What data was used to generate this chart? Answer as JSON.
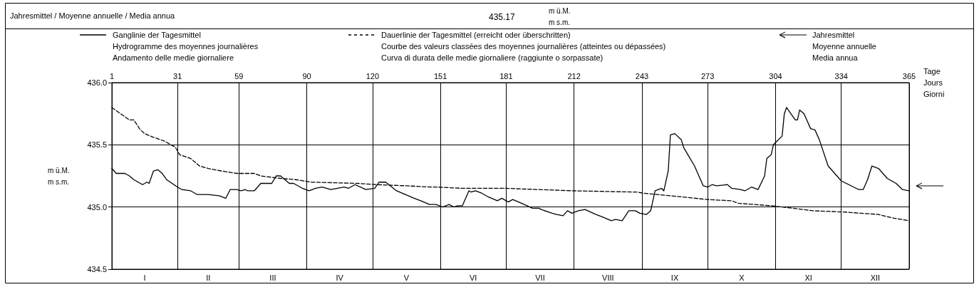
{
  "chart_data": {
    "type": "line",
    "annotations": [
      "Jahresmittel / Moyenne annuelle / Media annua",
      "435.17",
      "m ü.M.\nm s.m.",
      "Jahresmittel\nMoyenne annuelle\nMedia annua",
      "I",
      "II",
      "III",
      "IV",
      "V",
      "VI",
      "VII",
      "VIII",
      "IX",
      "X",
      "XI",
      "XII"
    ],
    "xlim": [
      1,
      365
    ],
    "xticks": [
      1,
      31,
      59,
      90,
      120,
      151,
      181,
      212,
      243,
      273,
      304,
      334,
      365
    ],
    "xlabel": "Tage\nJours\nGiorni",
    "ylim": [
      434.5,
      436
    ],
    "yticks": [
      {
        "value": 434.5,
        "label": "434.5"
      },
      {
        "value": 435,
        "label": "435.0"
      },
      {
        "value": 435.5,
        "label": "435.5"
      },
      {
        "value": 436,
        "label": "436.0"
      }
    ],
    "ylabel": "m ü.M.\nm s.m.",
    "grid": true,
    "legend": "top",
    "marker": "none",
    "series": [
      {
        "name": "Ganglinie der Tagesmittel\nHydrogramme des moyennes journalières\nAndamento delle medie giornaliere",
        "color": "#000000",
        "line_style": "solid",
        "x": [
          1,
          3,
          6,
          7,
          9,
          11,
          15,
          17,
          18,
          20,
          22,
          24,
          26,
          31,
          33,
          37,
          40,
          45,
          50,
          53,
          55,
          58,
          60,
          62,
          63,
          66,
          69,
          74,
          76,
          78,
          82,
          84,
          88,
          91,
          94,
          97,
          101,
          104,
          107,
          109,
          112,
          117,
          121,
          123,
          126,
          131,
          135,
          139,
          142,
          146,
          149,
          152,
          155,
          157,
          159,
          161,
          164,
          165,
          167,
          170,
          173,
          177,
          179,
          182,
          184,
          188,
          193,
          196,
          197,
          202,
          204,
          207,
          209,
          211,
          214,
          217,
          222,
          225,
          229,
          231,
          234,
          237,
          240,
          242,
          245,
          247,
          249,
          252,
          253,
          255,
          256,
          258,
          261,
          262,
          264,
          267,
          271,
          273,
          275,
          277,
          282,
          284,
          288,
          290,
          293,
          296,
          299,
          300,
          302,
          303,
          307,
          308,
          309,
          313,
          314,
          315,
          317,
          320,
          322,
          324,
          328,
          332,
          334,
          342,
          344,
          346,
          348,
          351,
          355,
          359,
          362,
          365
        ],
        "values": [
          435.31,
          435.27,
          435.27,
          435.27,
          435.25,
          435.22,
          435.18,
          435.2,
          435.19,
          435.29,
          435.3,
          435.27,
          435.22,
          435.16,
          435.14,
          435.13,
          435.1,
          435.1,
          435.09,
          435.07,
          435.14,
          435.14,
          435.13,
          435.14,
          435.13,
          435.13,
          435.19,
          435.19,
          435.25,
          435.25,
          435.19,
          435.19,
          435.15,
          435.13,
          435.15,
          435.16,
          435.14,
          435.15,
          435.16,
          435.15,
          435.18,
          435.14,
          435.15,
          435.2,
          435.2,
          435.13,
          435.1,
          435.07,
          435.05,
          435.02,
          435.02,
          435.0,
          435.02,
          435.0,
          435.01,
          435.01,
          435.13,
          435.12,
          435.13,
          435.11,
          435.08,
          435.05,
          435.07,
          435.04,
          435.06,
          435.03,
          434.99,
          434.99,
          434.98,
          434.95,
          434.94,
          434.93,
          434.97,
          434.95,
          434.97,
          434.98,
          434.94,
          434.92,
          434.89,
          434.9,
          434.89,
          434.97,
          434.97,
          434.95,
          434.94,
          434.97,
          435.13,
          435.15,
          435.13,
          435.29,
          435.58,
          435.59,
          435.54,
          435.48,
          435.42,
          435.33,
          435.17,
          435.16,
          435.18,
          435.17,
          435.18,
          435.15,
          435.14,
          435.13,
          435.16,
          435.14,
          435.25,
          435.39,
          435.42,
          435.5,
          435.57,
          435.75,
          435.8,
          435.7,
          435.7,
          435.78,
          435.75,
          435.63,
          435.62,
          435.54,
          435.33,
          435.25,
          435.21,
          435.14,
          435.14,
          435.22,
          435.33,
          435.31,
          435.23,
          435.19,
          435.14,
          435.13
        ]
      },
      {
        "name": "Dauerlinie der Tagesmittel (erreicht oder überschritten)\nCourbe des valeurs classées des moyennes journalières (atteintes ou dépassées)\nCurva di durata delle medie giornaliere (raggiunte o sorpassate)",
        "color": "#000000",
        "line_style": "dashed",
        "x": [
          1,
          5,
          9,
          11,
          14,
          16,
          20,
          25,
          30,
          32,
          37,
          41,
          45,
          51,
          58,
          66,
          69,
          78,
          85,
          92,
          113,
          122,
          136,
          147,
          150,
          161,
          181,
          212,
          241,
          244,
          262,
          273,
          284,
          287,
          302,
          312,
          321,
          335,
          351,
          358,
          365
        ],
        "values": [
          435.8,
          435.75,
          435.7,
          435.7,
          435.62,
          435.59,
          435.56,
          435.53,
          435.48,
          435.42,
          435.39,
          435.33,
          435.31,
          435.29,
          435.27,
          435.27,
          435.25,
          435.23,
          435.22,
          435.2,
          435.19,
          435.18,
          435.17,
          435.16,
          435.16,
          435.15,
          435.15,
          435.13,
          435.12,
          435.11,
          435.08,
          435.06,
          435.05,
          435.03,
          435.01,
          434.99,
          434.97,
          434.96,
          434.94,
          434.91,
          434.89
        ]
      }
    ]
  }
}
